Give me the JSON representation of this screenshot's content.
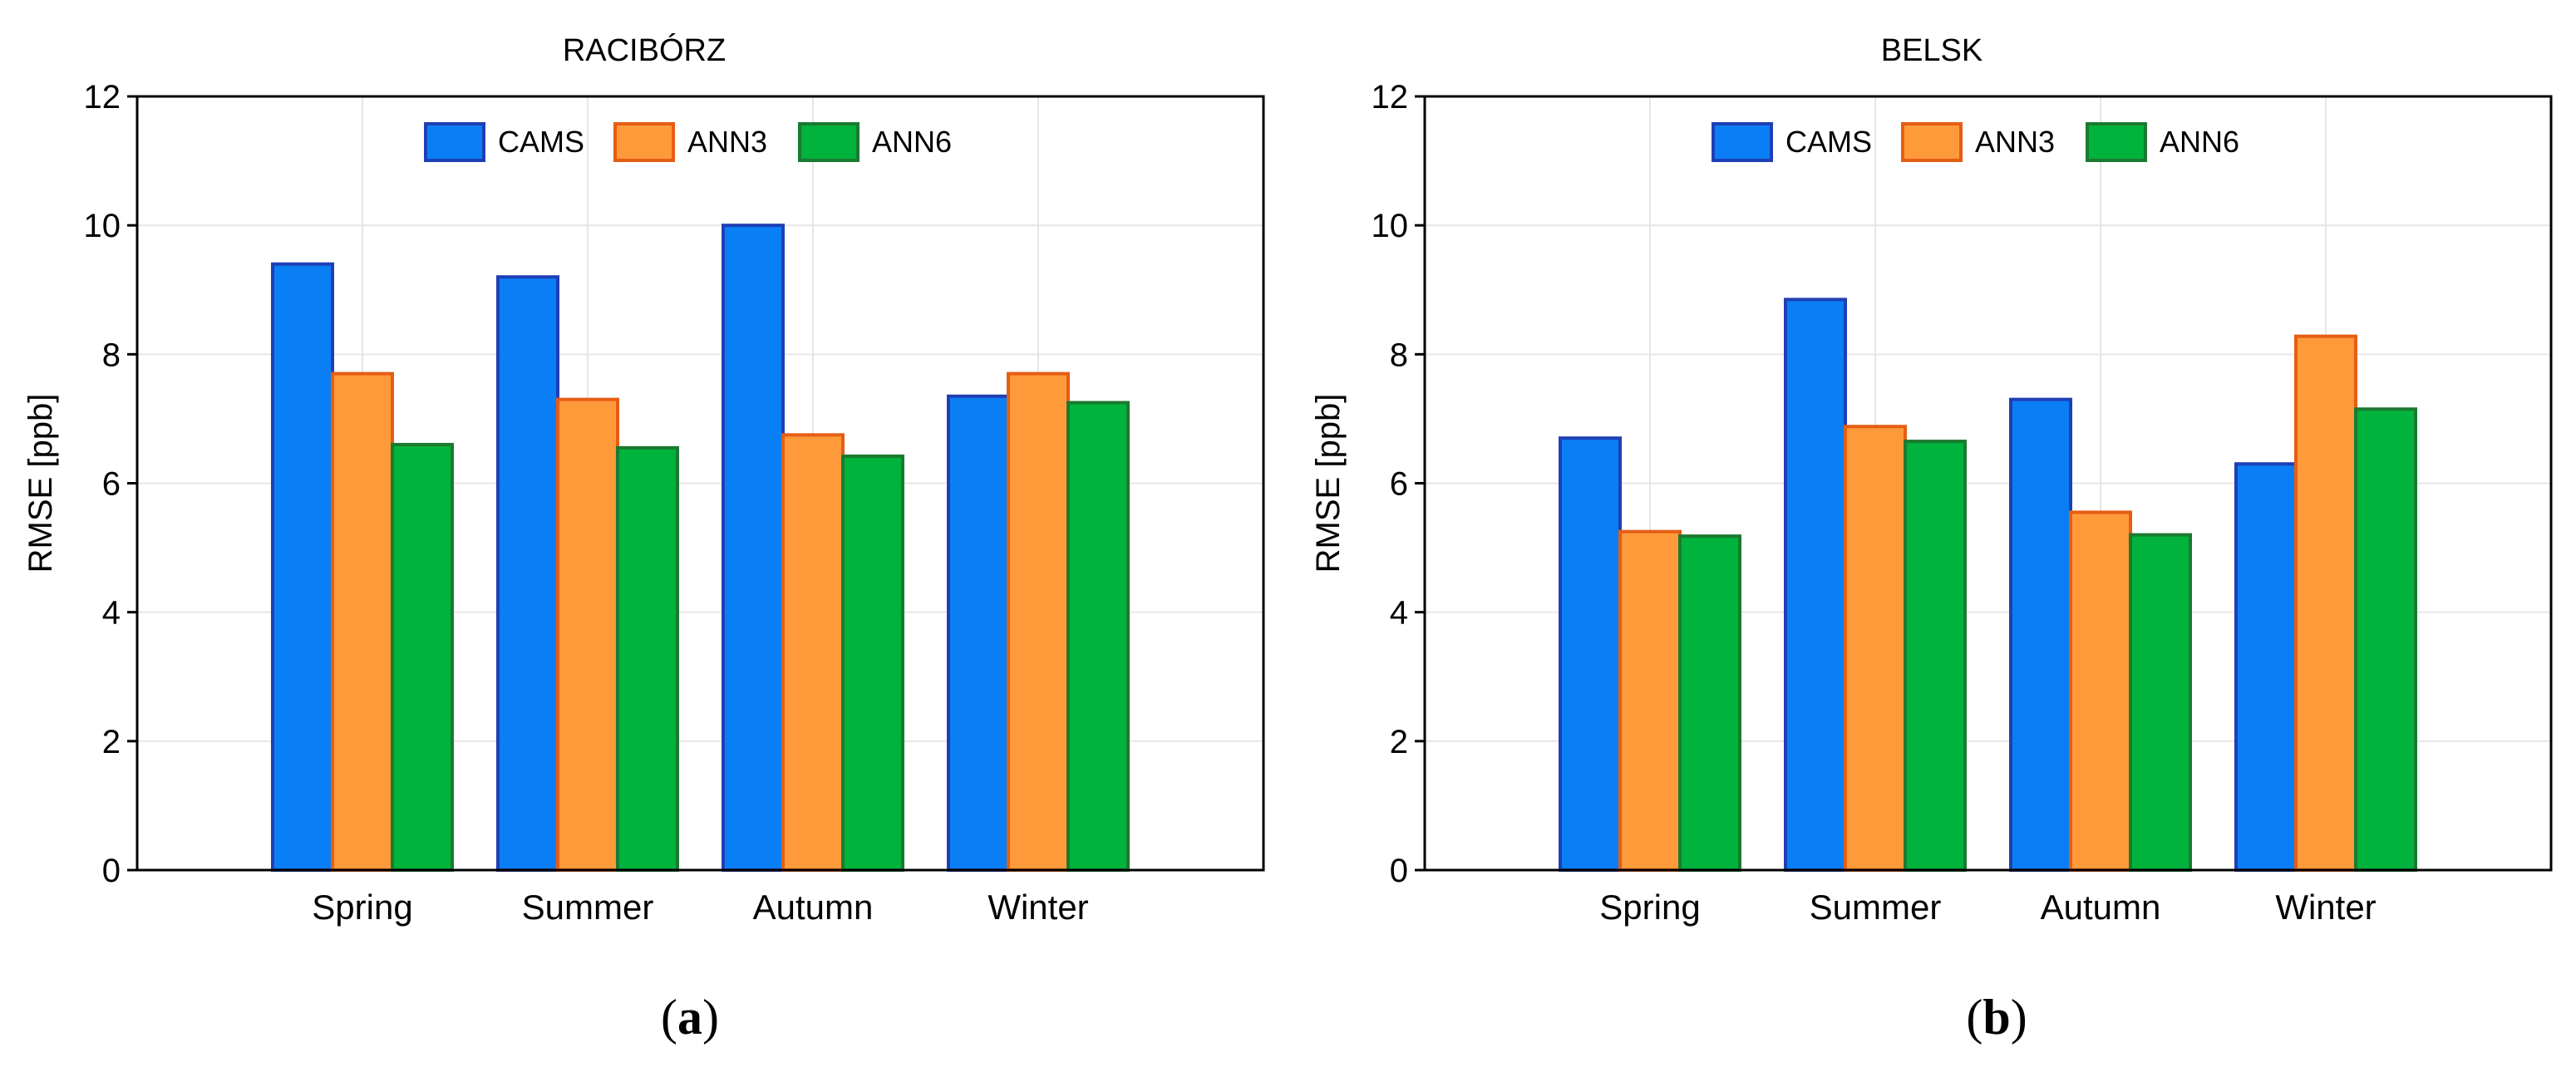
{
  "chart_data": [
    {
      "type": "bar",
      "title": "RACIBÓRZ",
      "xlabel": "",
      "ylabel": "RMSE [ppb]",
      "ylim": [
        0,
        12
      ],
      "yticks": [
        0,
        2,
        4,
        6,
        8,
        10,
        12
      ],
      "grid": true,
      "legend_position": "top-center",
      "categories": [
        "Spring",
        "Summer",
        "Autumn",
        "Winter"
      ],
      "series": [
        {
          "name": "CAMS",
          "values": [
            9.4,
            9.2,
            10.0,
            7.35
          ]
        },
        {
          "name": "ANN3",
          "values": [
            7.7,
            7.3,
            6.75,
            7.7
          ]
        },
        {
          "name": "ANN6",
          "values": [
            6.6,
            6.55,
            6.42,
            7.25
          ]
        }
      ],
      "caption_letter": "a"
    },
    {
      "type": "bar",
      "title": "BELSK",
      "xlabel": "",
      "ylabel": "RMSE [ppb]",
      "ylim": [
        0,
        12
      ],
      "yticks": [
        0,
        2,
        4,
        6,
        8,
        10,
        12
      ],
      "grid": true,
      "legend_position": "top-center",
      "categories": [
        "Spring",
        "Summer",
        "Autumn",
        "Winter"
      ],
      "series": [
        {
          "name": "CAMS",
          "values": [
            6.7,
            8.85,
            7.3,
            6.3
          ]
        },
        {
          "name": "ANN3",
          "values": [
            5.25,
            6.88,
            5.55,
            8.28
          ]
        },
        {
          "name": "ANN6",
          "values": [
            5.18,
            6.65,
            5.2,
            7.15
          ]
        }
      ],
      "caption_letter": "b"
    }
  ],
  "series_colors": {
    "CAMS": {
      "fill": "#0a7ff5",
      "stroke": "#1f3fb5"
    },
    "ANN3": {
      "fill": "#fe9a3a",
      "stroke": "#e65d14"
    },
    "ANN6": {
      "fill": "#00b33c",
      "stroke": "#1b7a30"
    }
  },
  "captions": {
    "open": "(",
    "close": ")"
  }
}
